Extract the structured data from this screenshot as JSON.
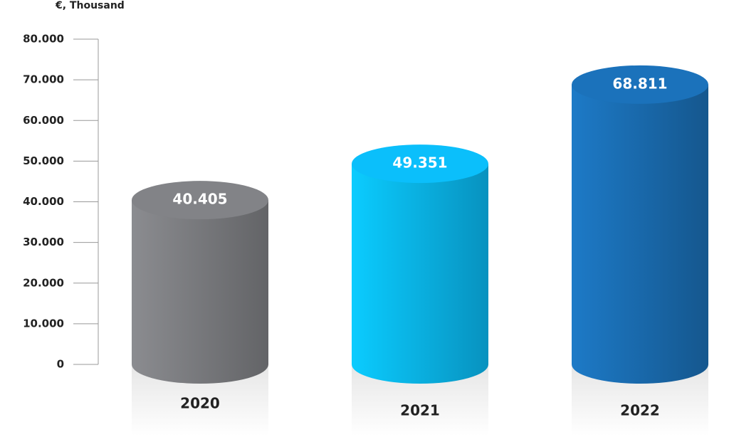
{
  "chart_data": {
    "type": "bar",
    "y_axis_label": "€, Thousand",
    "categories": [
      "2020",
      "2021",
      "2022"
    ],
    "values": [
      40405,
      49351,
      68811
    ],
    "value_labels": [
      "40.405",
      "49.351",
      "68.811"
    ],
    "colors": [
      "#7c7d81",
      "#0ab6ef",
      "#1a6db2"
    ],
    "ylim": [
      0,
      80000
    ],
    "yticks": [
      0,
      {
        "value": 10000,
        "label": "10.000"
      },
      {
        "value": 20000,
        "label": "20.000"
      },
      {
        "value": 30000,
        "label": "30.000"
      },
      {
        "value": 40000,
        "label": "40.000"
      },
      {
        "value": 50000,
        "label": "50.000"
      },
      {
        "value": 60000,
        "label": "60.000"
      },
      {
        "value": 70000,
        "label": "70.000"
      },
      {
        "value": 80000,
        "label": "80.000"
      }
    ]
  }
}
